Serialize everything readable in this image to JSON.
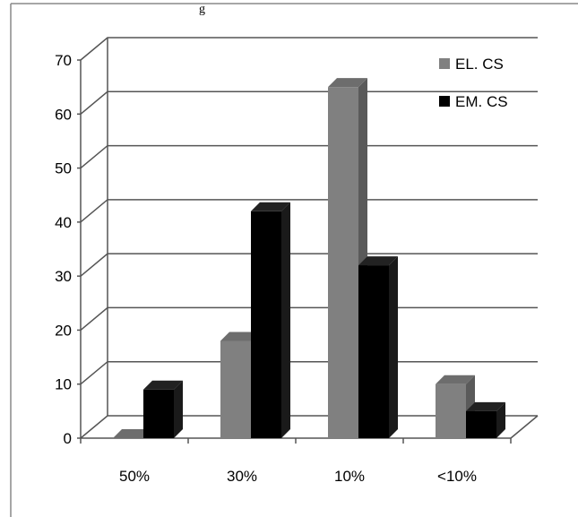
{
  "header_fragment": "g",
  "chart_data": {
    "type": "bar",
    "categories": [
      "50%",
      "30%",
      "10%",
      "<10%"
    ],
    "series": [
      {
        "name": "EL. CS",
        "values": [
          0,
          18,
          65,
          10
        ]
      },
      {
        "name": "EM. CS",
        "values": [
          9,
          42,
          32,
          5
        ]
      }
    ],
    "ylim": [
      0,
      70
    ],
    "yticks": [
      0,
      10,
      20,
      30,
      40,
      50,
      60,
      70
    ],
    "grid": true,
    "legend_position": "top-right",
    "style": "3d-clustered",
    "colors": {
      "EL. CS": "#808080",
      "EM. CS": "#000000"
    }
  }
}
